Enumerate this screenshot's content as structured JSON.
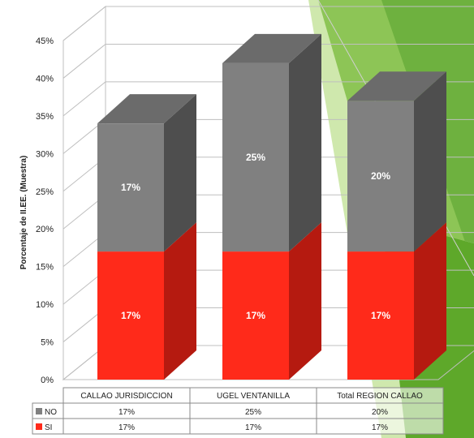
{
  "chart_data": {
    "type": "bar",
    "stacked": true,
    "three_d": true,
    "categories": [
      "CALLAO JURISDICCION",
      "UGEL VENTANILLA",
      "Total REGION CALLAO"
    ],
    "series": [
      {
        "name": "SI",
        "values": [
          17,
          17,
          17
        ],
        "labels": [
          "17%",
          "17%",
          "17%"
        ],
        "color": "#ff2a1a"
      },
      {
        "name": "NO",
        "values": [
          17,
          25,
          20
        ],
        "labels": [
          "17%",
          "25%",
          "20%"
        ],
        "color": "#808080"
      }
    ],
    "ylabel": "Porcentaje de II.EE. (Muestra)",
    "xlabel": "",
    "ylim": [
      0,
      45
    ],
    "yticks": [
      "0%",
      "5%",
      "10%",
      "15%",
      "20%",
      "25%",
      "30%",
      "35%",
      "40%",
      "45%"
    ],
    "grid": true,
    "legend": "data-table-below"
  },
  "data_table": {
    "rows": [
      {
        "series": "NO",
        "values": [
          "17%",
          "25%",
          "20%"
        ]
      },
      {
        "series": "SI",
        "values": [
          "17%",
          "17%",
          "17%"
        ]
      }
    ]
  },
  "colors": {
    "si_front": "#ff2a1a",
    "si_side": "#b51a10",
    "si_top": "#e02618",
    "no_front": "#808080",
    "no_side": "#4e4e4e",
    "no_top": "#6b6b6b",
    "grid": "#bfbfbf",
    "deco_green_dark": "#5ea82a",
    "deco_green_light": "#a8d66a"
  }
}
